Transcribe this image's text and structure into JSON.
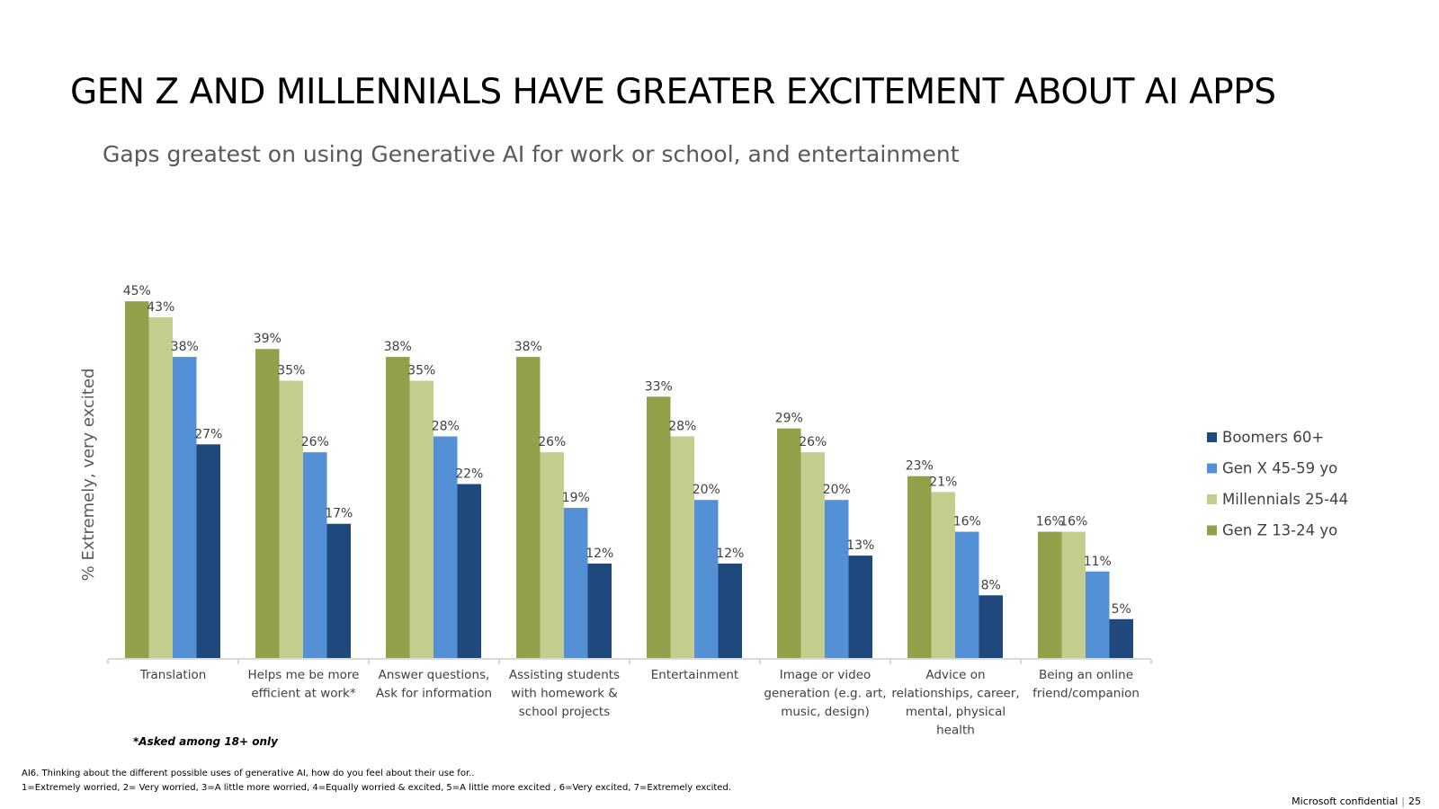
{
  "slide": {
    "title": "GEN Z AND MILLENNIALS HAVE GREATER EXCITEMENT ABOUT AI APPS",
    "subtitle": "Gaps greatest on using Generative AI for work or school, and entertainment",
    "note": "*Asked among 18+ only",
    "footnote_question": "AI6. Thinking about the different possible uses of generative AI, how do you feel about their use for..",
    "footnote_scale": "1=Extremely worried, 2= Very worried, 3=A little more worried, 4=Equally worried & excited, 5=A little more excited , 6=Very excited, 7=Extremely excited.",
    "confidential": "Microsoft confidential",
    "page_number": "25"
  },
  "chart_data": {
    "type": "bar",
    "ylabel": "% Extremely, very excited",
    "ylim": [
      0,
      50
    ],
    "grid": false,
    "legend_position": "right",
    "value_suffix": "%",
    "categories": [
      [
        "Translation"
      ],
      [
        "Helps me be more",
        "efficient at work*"
      ],
      [
        "Answer questions,",
        "Ask for information"
      ],
      [
        "Assisting students",
        "with homework &",
        "school projects"
      ],
      [
        "Entertainment"
      ],
      [
        "Image or video",
        "generation (e.g. art,",
        "music, design)"
      ],
      [
        "Advice on",
        "relationships, career,",
        "mental, physical",
        "health"
      ],
      [
        "Being an online",
        "friend/companion"
      ]
    ],
    "series": [
      {
        "name": "Gen Z 13-24 yo",
        "color": "#93A04A",
        "values": [
          45,
          39,
          38,
          38,
          33,
          29,
          23,
          16
        ]
      },
      {
        "name": "Millennials 25-44",
        "color": "#C4CC8E",
        "values": [
          43,
          35,
          35,
          26,
          28,
          26,
          21,
          16
        ]
      },
      {
        "name": "Gen X 45-59 yo",
        "color": "#5490D6",
        "values": [
          38,
          26,
          28,
          19,
          20,
          20,
          16,
          11
        ]
      },
      {
        "name": "Boomers 60+",
        "color": "#1F497D",
        "values": [
          27,
          17,
          22,
          12,
          12,
          13,
          8,
          5
        ]
      }
    ],
    "legend_order": [
      "Boomers 60+",
      "Gen X 45-59 yo",
      "Millennials 25-44",
      "Gen Z 13-24 yo"
    ]
  }
}
